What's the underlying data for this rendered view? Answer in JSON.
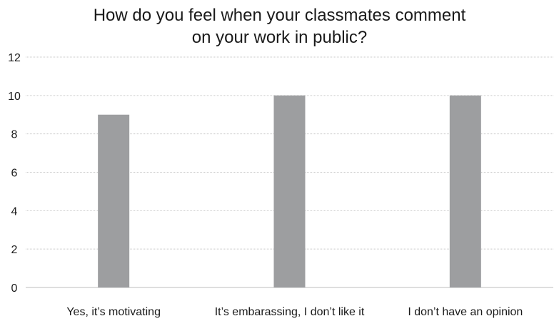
{
  "chart_data": {
    "type": "bar",
    "title_lines": [
      "How do you feel when your classmates comment",
      "on your work in public?"
    ],
    "categories": [
      "Yes, it’s motivating",
      "It’s embarassing, I don’t like it",
      "I don’t have an opinion"
    ],
    "values": [
      9,
      10,
      10
    ],
    "ylim": [
      0,
      12
    ],
    "yticks": [
      "0",
      "2",
      "4",
      "6",
      "8",
      "10",
      "12"
    ],
    "grid": true,
    "legend": "none",
    "colors": {
      "bar": "#9d9ea0",
      "grid": "#c9c9c9",
      "axis": "#bdbdbd",
      "text": "#1a1a1a"
    }
  }
}
